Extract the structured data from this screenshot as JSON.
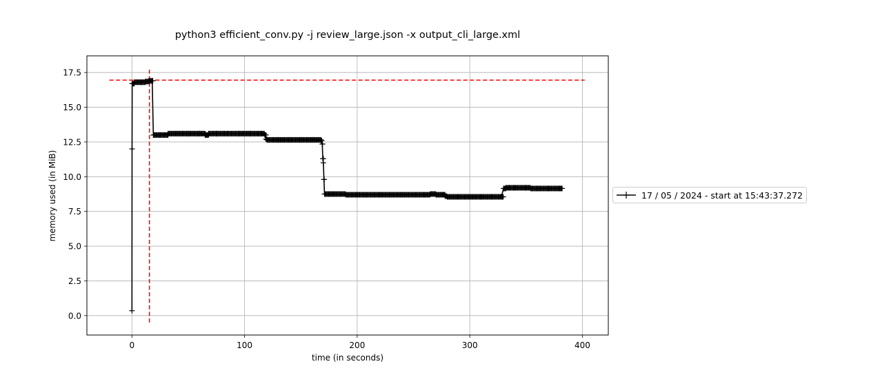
{
  "chart_data": {
    "type": "line",
    "title": "python3 efficient_conv.py -j review_large.json -x output_cli_large.xml",
    "xlabel": "time (in seconds)",
    "ylabel": "memory used (in MiB)",
    "xlim": [
      -40,
      423
    ],
    "ylim": [
      -1.4,
      18.7
    ],
    "xticks": [
      0,
      100,
      200,
      300,
      400
    ],
    "xtick_labels": [
      "0",
      "100",
      "200",
      "300",
      "400"
    ],
    "yticks": [
      0.0,
      2.5,
      5.0,
      7.5,
      10.0,
      12.5,
      15.0,
      17.5
    ],
    "ytick_labels": [
      "0.0",
      "2.5",
      "5.0",
      "7.5",
      "10.0",
      "12.5",
      "15.0",
      "17.5"
    ],
    "grid": true,
    "legend_position": "outside-right",
    "series": [
      {
        "name": "17 / 05 / 2024 - start at 15:43:37.272",
        "color": "#000000",
        "marker": "+",
        "x": [
          0,
          0.1,
          0.2,
          2,
          8,
          12,
          15,
          18,
          19,
          20,
          25,
          32,
          40,
          50,
          60,
          65,
          66,
          68,
          75,
          85,
          95,
          105,
          115,
          118,
          119,
          120,
          130,
          140,
          150,
          160,
          168,
          169,
          169.5,
          170,
          170.5,
          171,
          175,
          180,
          190,
          200,
          220,
          240,
          260,
          265,
          270,
          276,
          278,
          280,
          290,
          300,
          310,
          320,
          328,
          330,
          332,
          335,
          340,
          350,
          354,
          360,
          370,
          380,
          382
        ],
        "y": [
          0.35,
          12.0,
          16.7,
          16.8,
          16.8,
          16.85,
          16.9,
          16.9,
          13.0,
          13.0,
          13.0,
          13.1,
          13.1,
          13.1,
          13.1,
          13.0,
          13.0,
          13.1,
          13.1,
          13.1,
          13.1,
          13.1,
          13.1,
          13.0,
          12.7,
          12.65,
          12.65,
          12.65,
          12.65,
          12.65,
          12.6,
          12.35,
          11.3,
          11.0,
          9.8,
          8.75,
          8.75,
          8.75,
          8.7,
          8.7,
          8.7,
          8.7,
          8.7,
          8.75,
          8.7,
          8.7,
          8.6,
          8.55,
          8.55,
          8.55,
          8.55,
          8.55,
          8.55,
          9.15,
          9.2,
          9.2,
          9.2,
          9.2,
          9.15,
          9.15,
          9.15,
          9.15,
          9.15
        ]
      }
    ],
    "reference_lines": [
      {
        "orientation": "horizontal",
        "value": 16.95,
        "from": -20,
        "to": 402,
        "color": "#ff0000",
        "style": "dashed"
      },
      {
        "orientation": "vertical",
        "value": 15.5,
        "from": -0.5,
        "to": 17.7,
        "color": "#ff0000",
        "style": "dashed"
      }
    ]
  }
}
